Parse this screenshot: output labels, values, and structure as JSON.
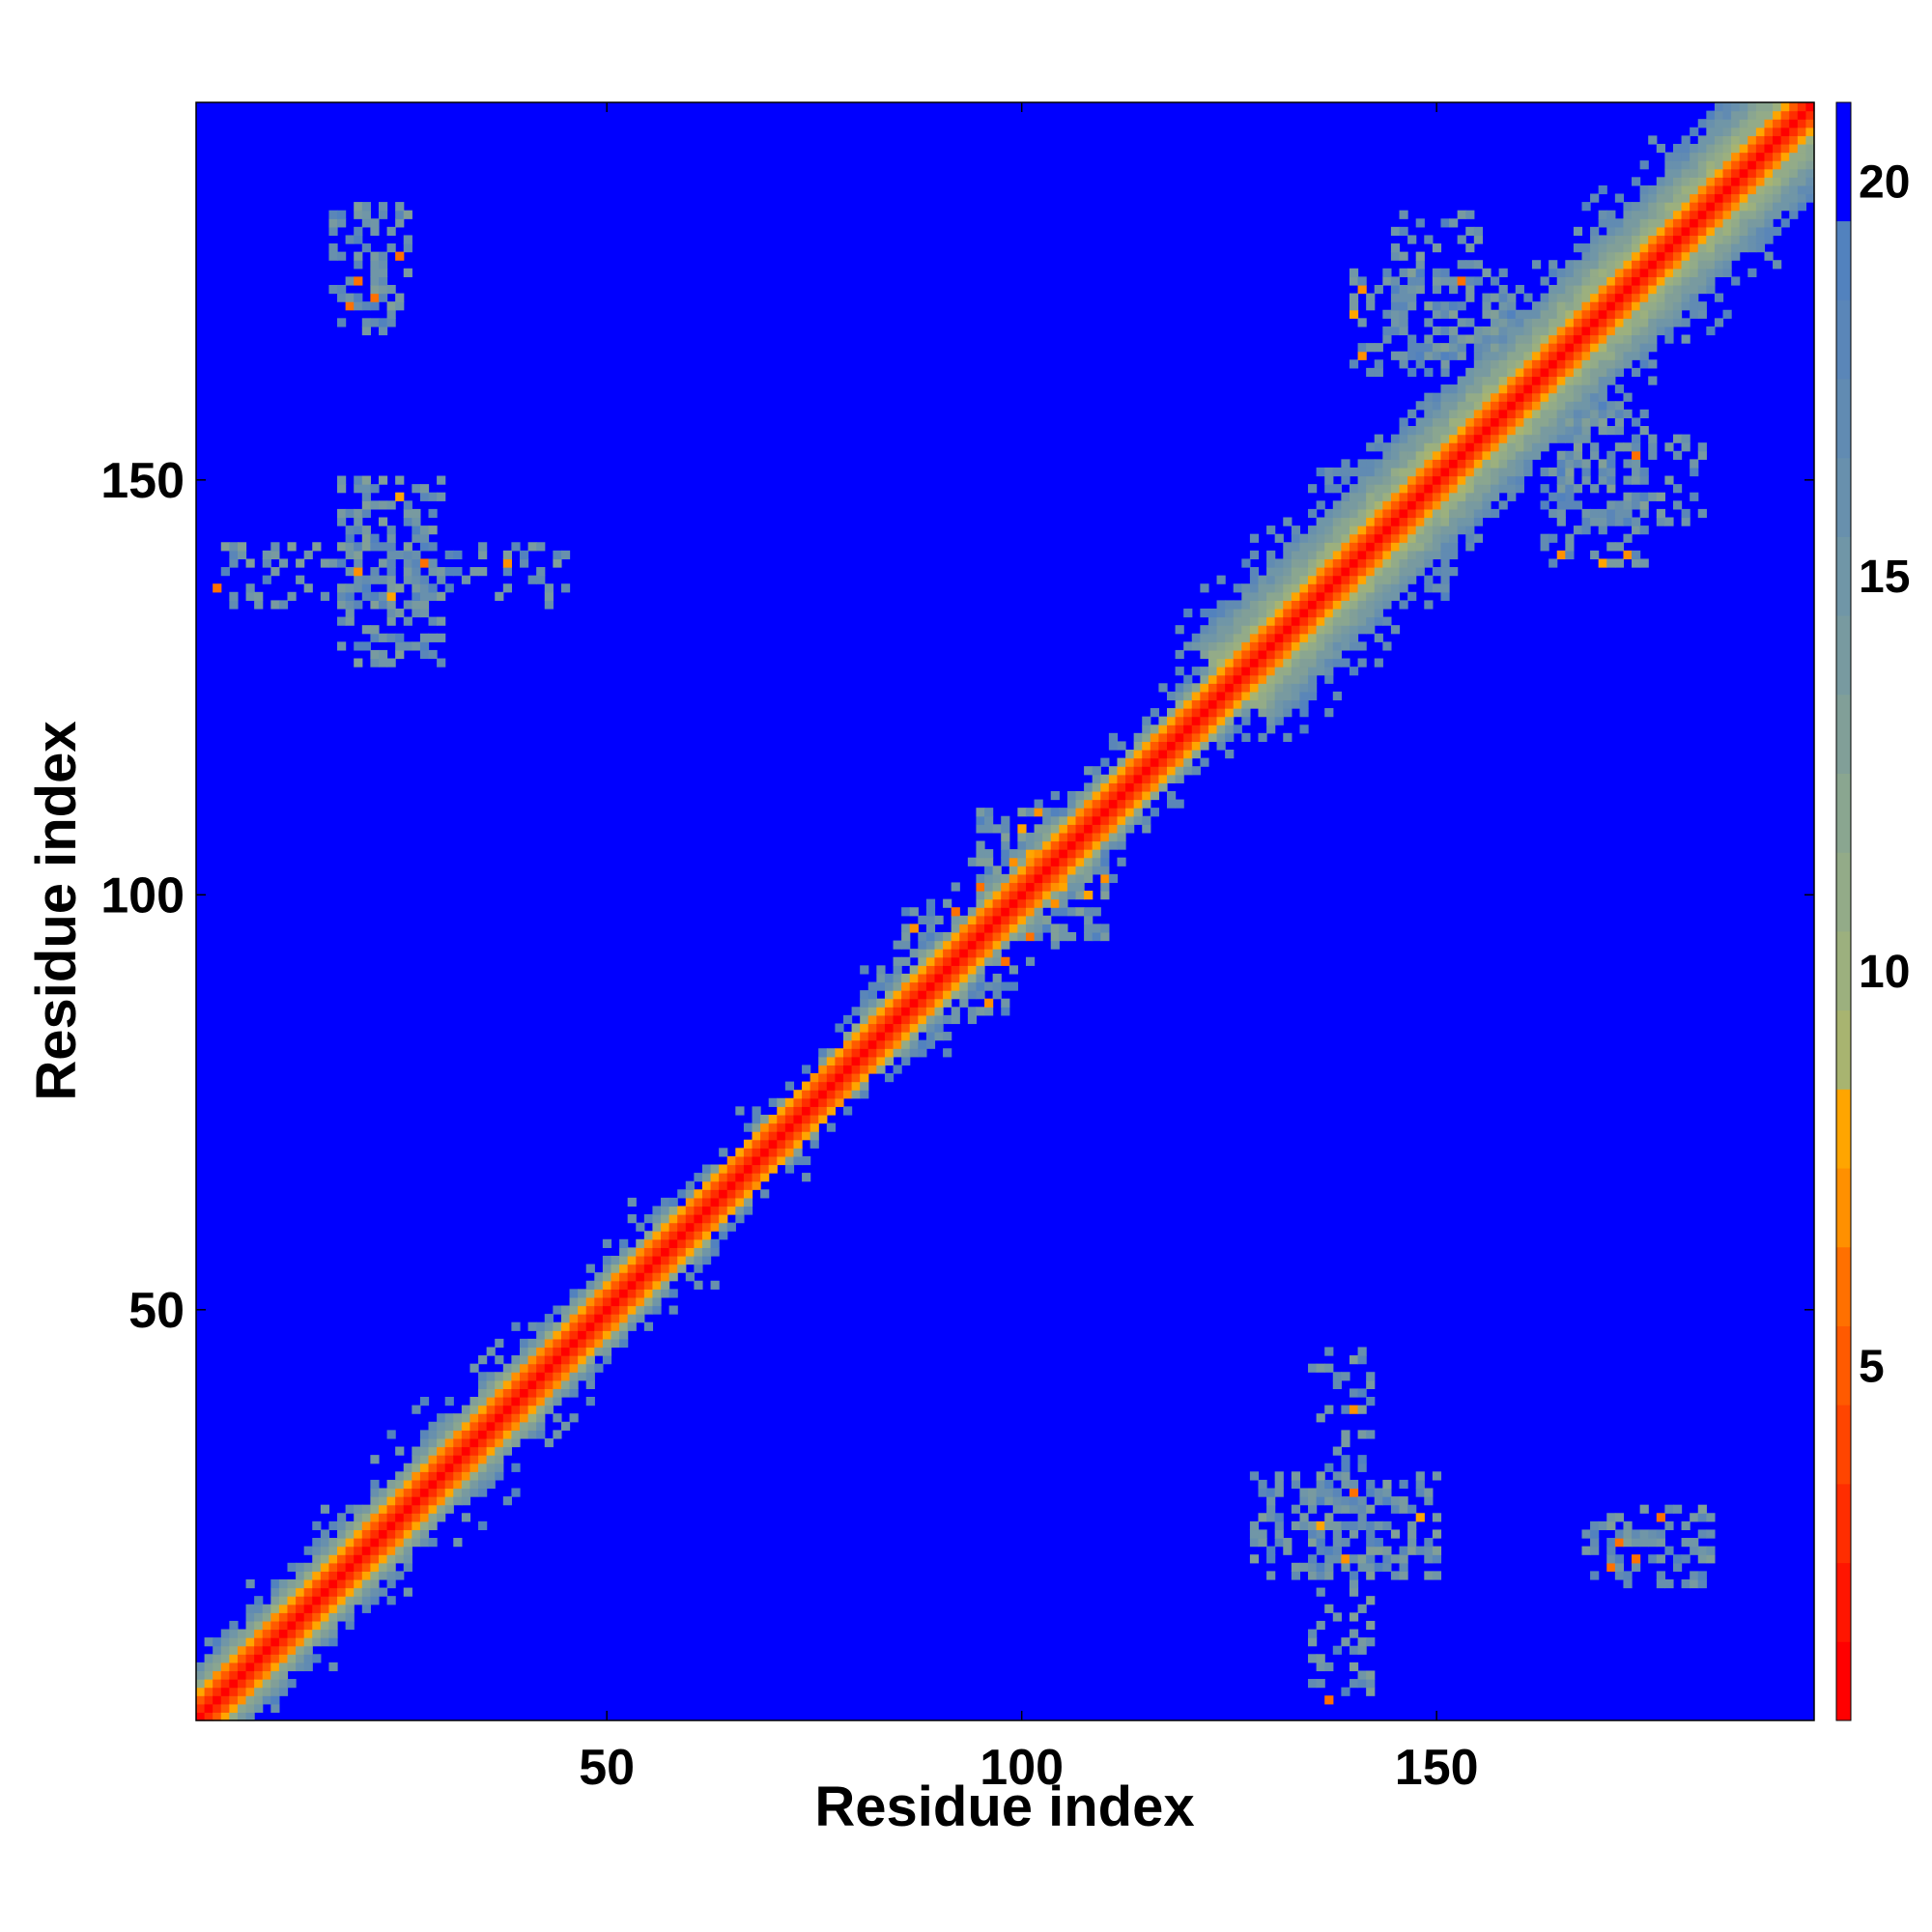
{
  "chart_data": {
    "type": "heatmap",
    "title": "",
    "xlabel": "Residue index",
    "ylabel": "Residue index",
    "n_residues": 195,
    "xlim": [
      1,
      195
    ],
    "ylim": [
      1,
      195
    ],
    "xticks": [
      50,
      100,
      150
    ],
    "yticks": [
      50,
      100,
      150
    ],
    "colorbar": {
      "range": [
        0.5,
        21
      ],
      "ticks": [
        5,
        10,
        15,
        20
      ],
      "tick_labels": [
        "5",
        "10",
        "15",
        "20"
      ],
      "levels": [
        {
          "max": 1.5,
          "color": "#ff0000"
        },
        {
          "max": 2.5,
          "color": "#ff1500"
        },
        {
          "max": 3.5,
          "color": "#ff2d00"
        },
        {
          "max": 4.5,
          "color": "#ff4500"
        },
        {
          "max": 5.5,
          "color": "#ff5a00"
        },
        {
          "max": 6.5,
          "color": "#ff7000"
        },
        {
          "max": 7.5,
          "color": "#ff9000"
        },
        {
          "max": 8.5,
          "color": "#ffa500"
        },
        {
          "max": 9.5,
          "color": "#a8b470"
        },
        {
          "max": 10.5,
          "color": "#9cb07e"
        },
        {
          "max": 11.5,
          "color": "#93ab88"
        },
        {
          "max": 12.5,
          "color": "#8aa690"
        },
        {
          "max": 13.5,
          "color": "#819f98"
        },
        {
          "max": 14.5,
          "color": "#789aa0"
        },
        {
          "max": 15.5,
          "color": "#7096a7"
        },
        {
          "max": 16.5,
          "color": "#6890ad"
        },
        {
          "max": 17.5,
          "color": "#618bb2"
        },
        {
          "max": 18.5,
          "color": "#5a86b8"
        },
        {
          "max": 19.5,
          "color": "#5282be"
        },
        {
          "max": 21,
          "color": "#0000ff"
        }
      ]
    },
    "values_note_excluded": true,
    "diagonal_band": [
      {
        "from": 1,
        "to": 40,
        "half_width": 5
      },
      {
        "from": 40,
        "to": 60,
        "half_width": 4
      },
      {
        "from": 60,
        "to": 80,
        "half_width": 3
      },
      {
        "from": 80,
        "to": 125,
        "half_width": 4
      },
      {
        "from": 125,
        "to": 195,
        "half_width": 9
      }
    ],
    "contact_clusters": [
      {
        "i_range": [
          18,
          30
        ],
        "j_range": [
          128,
          150
        ],
        "density": 0.45
      },
      {
        "i_range": [
          17,
          26
        ],
        "j_range": [
          168,
          183
        ],
        "density": 0.35
      },
      {
        "i_range": [
          3,
          45
        ],
        "j_range": [
          135,
          142
        ],
        "density": 0.25
      },
      {
        "i_range": [
          145,
          155
        ],
        "j_range": [
          165,
          182
        ],
        "density": 0.4
      },
      {
        "i_range": [
          163,
          175
        ],
        "j_range": [
          140,
          158
        ],
        "density": 0.4
      },
      {
        "i_range": [
          85,
          95
        ],
        "j_range": [
          85,
          98
        ],
        "density": 0.35
      },
      {
        "i_range": [
          95,
          110
        ],
        "j_range": [
          95,
          110
        ],
        "density": 0.35
      }
    ]
  }
}
